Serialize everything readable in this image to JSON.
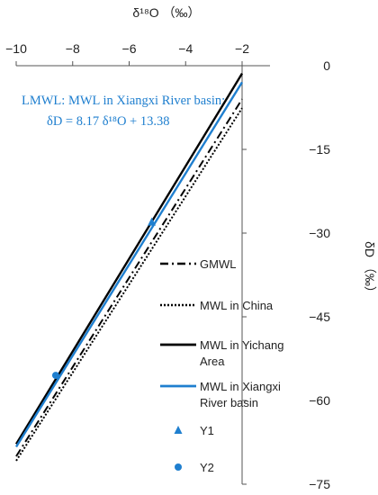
{
  "chart_data": {
    "type": "line",
    "xlabel": "δ¹⁸O （‰）",
    "ylabel": "δD （‰）",
    "xlim": [
      -10,
      -2
    ],
    "ylim": [
      -75,
      0
    ],
    "xticks": [
      -10,
      -8,
      -6,
      -4,
      -2
    ],
    "yticks": [
      0,
      -15,
      -30,
      -45,
      -60,
      -75
    ],
    "x_axis_position": "top",
    "y_axis_position": "right",
    "grid": false,
    "legend_placement": "right",
    "series": [
      {
        "name": "GMWL",
        "kind": "line",
        "slope": 8,
        "intercept": 10,
        "x": [
          -10,
          -2
        ],
        "y": [
          -70,
          -6
        ],
        "style": "dashdot",
        "color": "#000000"
      },
      {
        "name": "MWL in China",
        "kind": "line",
        "slope": 7.9,
        "intercept": 8.2,
        "x": [
          -10,
          -2
        ],
        "y": [
          -70.8,
          -7.6
        ],
        "style": "dotted",
        "color": "#000000"
      },
      {
        "name": "MWL in Yichang Area",
        "kind": "line",
        "slope": 8.3,
        "intercept": 15.2,
        "x": [
          -10,
          -2
        ],
        "y": [
          -67.8,
          -1.4
        ],
        "style": "solid",
        "color": "#000000"
      },
      {
        "name": "MWL in Xiangxi River basin",
        "kind": "line",
        "slope": 8.17,
        "intercept": 13.38,
        "x": [
          -10,
          -2
        ],
        "y": [
          -68.3,
          -2.96
        ],
        "style": "solid",
        "color": "#1f7fcf"
      },
      {
        "name": "Y1",
        "kind": "point",
        "marker": "triangle",
        "x": [
          -5.2
        ],
        "y": [
          -28
        ],
        "color": "#1f7fcf"
      },
      {
        "name": "Y2",
        "kind": "point",
        "marker": "circle",
        "x": [
          -8.6
        ],
        "y": [
          -55.5
        ],
        "color": "#1f7fcf"
      }
    ],
    "annotations": {
      "line1": "LMWL: MWL in Xiangxi River basin:",
      "line2": "δD  =  8.17 δ¹⁸O  + 13.38",
      "color": "#1f7fcf"
    }
  }
}
